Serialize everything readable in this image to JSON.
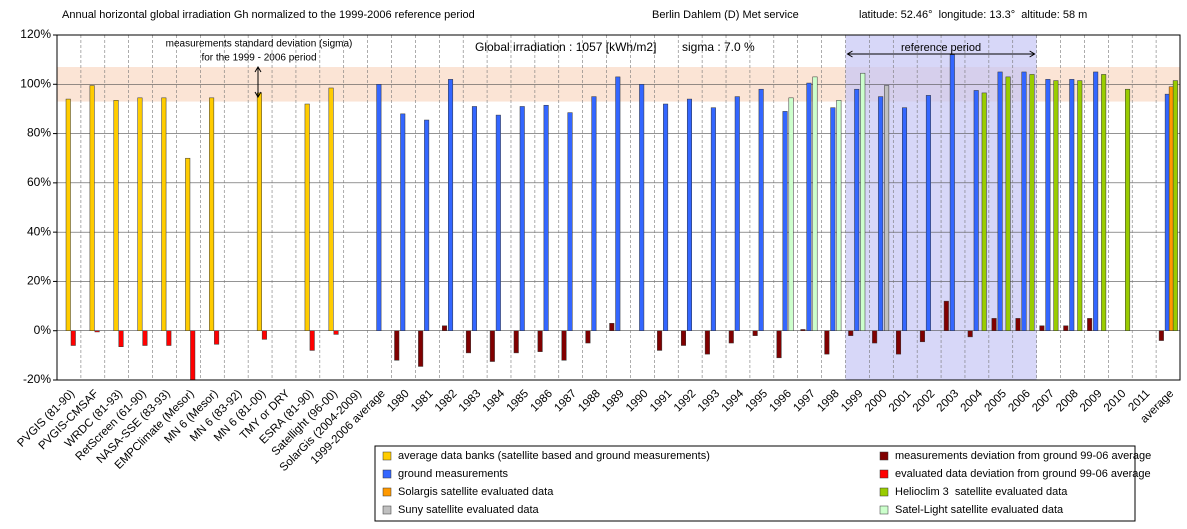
{
  "chart_data": {
    "type": "bar",
    "title": "Annual horizontal global irradiation Gh normalized to the 1999-2006 reference period",
    "station": "Berlin Dahlem (D) Met service",
    "location": "latitude: 52.46°  longitude: 13.3°  altitude: 58 m",
    "annotations": {
      "irradiation": "Global irradiation : 1057 [kWh/m2]",
      "sigma": "sigma : 7.0 %",
      "sigma_note_1": "measurements standard deviation (sigma)",
      "sigma_note_2": "for the 1999 - 2006 period",
      "reference": "reference period"
    },
    "sigma_band": [
      93,
      107
    ],
    "reference_period": [
      "1999",
      "2006"
    ],
    "categories": [
      "PVGIS (81-90)",
      "PVGIS-CMSAF",
      "WRDC (81-93)",
      "RetScreen (61-90)",
      "NASA-SSE (83-93)",
      "EMPClimate (Mesor)",
      "MN 6 (Mesor)",
      "MN 6 (83-92)",
      "MN 6 (81-00)",
      "TMY or DRY",
      "ESRA (81-90)",
      "Satellight (96-00)",
      "SolarGis (2004-2009)",
      "1999-2006 average",
      "1980",
      "1981",
      "1982",
      "1983",
      "1984",
      "1985",
      "1986",
      "1987",
      "1988",
      "1989",
      "1990",
      "1991",
      "1992",
      "1993",
      "1994",
      "1995",
      "1996",
      "1997",
      "1998",
      "1999",
      "2000",
      "2001",
      "2002",
      "2003",
      "2004",
      "2005",
      "2006",
      "2007",
      "2008",
      "2009",
      "2010",
      "2011",
      "average"
    ],
    "ylim": [
      -20,
      120
    ],
    "yticks": [
      {
        "value": -20,
        "label": "-20%"
      },
      {
        "value": 0,
        "label": "0%"
      },
      {
        "value": 20,
        "label": "20%"
      },
      {
        "value": 40,
        "label": "40%"
      },
      {
        "value": 60,
        "label": "60%"
      },
      {
        "value": 80,
        "label": "80%"
      },
      {
        "value": 100,
        "label": "100%"
      },
      {
        "value": 120,
        "label": "120%"
      }
    ],
    "grid": true,
    "series": [
      {
        "name": "average data banks (satellite based and ground measurements)",
        "color": "#ffcc00",
        "values": [
          94,
          99.5,
          93.5,
          94.5,
          94.5,
          70,
          94.5,
          null,
          96.5,
          null,
          92,
          98.5,
          null,
          null,
          null,
          null,
          null,
          null,
          null,
          null,
          null,
          null,
          null,
          null,
          null,
          null,
          null,
          null,
          null,
          null,
          null,
          null,
          null,
          null,
          null,
          null,
          null,
          null,
          null,
          null,
          null,
          null,
          null,
          null,
          null,
          null,
          null
        ]
      },
      {
        "name": "ground measurements",
        "color": "#3366ff",
        "values": [
          null,
          null,
          null,
          null,
          null,
          null,
          null,
          null,
          null,
          null,
          null,
          null,
          null,
          100,
          88,
          85.5,
          102,
          91,
          87.5,
          91,
          91.5,
          88.5,
          95,
          103,
          100,
          92,
          94,
          90.5,
          95,
          98,
          89,
          100.5,
          90.5,
          98,
          95,
          90.5,
          95.5,
          112,
          97.5,
          105,
          105,
          102,
          102,
          105,
          null,
          null,
          96
        ]
      },
      {
        "name": "Solargis satellite evaluated data",
        "color": "#ff9900",
        "values": [
          null,
          null,
          null,
          null,
          null,
          null,
          null,
          null,
          null,
          null,
          null,
          null,
          null,
          null,
          null,
          null,
          null,
          null,
          null,
          null,
          null,
          null,
          null,
          null,
          null,
          null,
          null,
          null,
          null,
          null,
          null,
          null,
          null,
          null,
          null,
          null,
          null,
          null,
          null,
          null,
          null,
          null,
          null,
          null,
          null,
          null,
          99
        ]
      },
      {
        "name": "Suny satellite evaluated data",
        "color": "#c0c0c0",
        "values": [
          null,
          null,
          null,
          null,
          null,
          null,
          null,
          null,
          null,
          null,
          null,
          null,
          null,
          null,
          null,
          null,
          null,
          null,
          null,
          null,
          null,
          null,
          null,
          null,
          null,
          null,
          null,
          null,
          null,
          null,
          null,
          null,
          null,
          null,
          99.5,
          null,
          null,
          null,
          null,
          null,
          null,
          null,
          null,
          null,
          null,
          null,
          null
        ]
      },
      {
        "name": "measurements deviation from ground 99-06 average",
        "color": "#800000",
        "values": [
          null,
          null,
          null,
          null,
          null,
          null,
          null,
          null,
          null,
          null,
          null,
          null,
          null,
          null,
          -12,
          -14.5,
          2,
          -9,
          -12.5,
          -9,
          -8.5,
          -12,
          -5,
          3,
          0,
          -8,
          -6,
          -9.5,
          -5,
          -2,
          -11,
          0.5,
          -9.5,
          -2,
          -5,
          -9.5,
          -4.5,
          12,
          -2.5,
          5,
          5,
          2,
          2,
          5,
          null,
          null,
          -4
        ]
      },
      {
        "name": "evaluated data deviation from ground 99-06 average",
        "color": "#ff0000",
        "values": [
          -6,
          -0.5,
          -6.5,
          -6,
          -6,
          -30,
          -5.5,
          null,
          -3.5,
          null,
          -8,
          -1.5,
          null,
          null,
          null,
          null,
          null,
          null,
          null,
          null,
          null,
          null,
          null,
          null,
          null,
          null,
          null,
          null,
          null,
          null,
          null,
          null,
          null,
          null,
          null,
          null,
          null,
          null,
          null,
          null,
          null,
          null,
          null,
          null,
          null,
          null,
          null
        ]
      },
      {
        "name": "Helioclim 3  satellite evaluated data",
        "color": "#99cc00",
        "values": [
          null,
          null,
          null,
          null,
          null,
          null,
          null,
          null,
          null,
          null,
          null,
          null,
          null,
          null,
          null,
          null,
          null,
          null,
          null,
          null,
          null,
          null,
          null,
          null,
          null,
          null,
          null,
          null,
          null,
          null,
          null,
          null,
          null,
          null,
          null,
          null,
          null,
          null,
          96.5,
          103,
          104,
          101.5,
          101.5,
          104,
          98,
          null,
          101.5
        ]
      },
      {
        "name": "Satel-Light satellite evaluated data",
        "color": "#ccffcc",
        "values": [
          null,
          null,
          null,
          null,
          null,
          null,
          null,
          null,
          null,
          null,
          null,
          null,
          null,
          null,
          null,
          null,
          null,
          null,
          null,
          null,
          null,
          null,
          null,
          null,
          null,
          null,
          null,
          null,
          null,
          null,
          94.5,
          103,
          93.5,
          104.5,
          null,
          null,
          null,
          null,
          null,
          null,
          null,
          null,
          null,
          null,
          null,
          null,
          null
        ]
      }
    ]
  }
}
